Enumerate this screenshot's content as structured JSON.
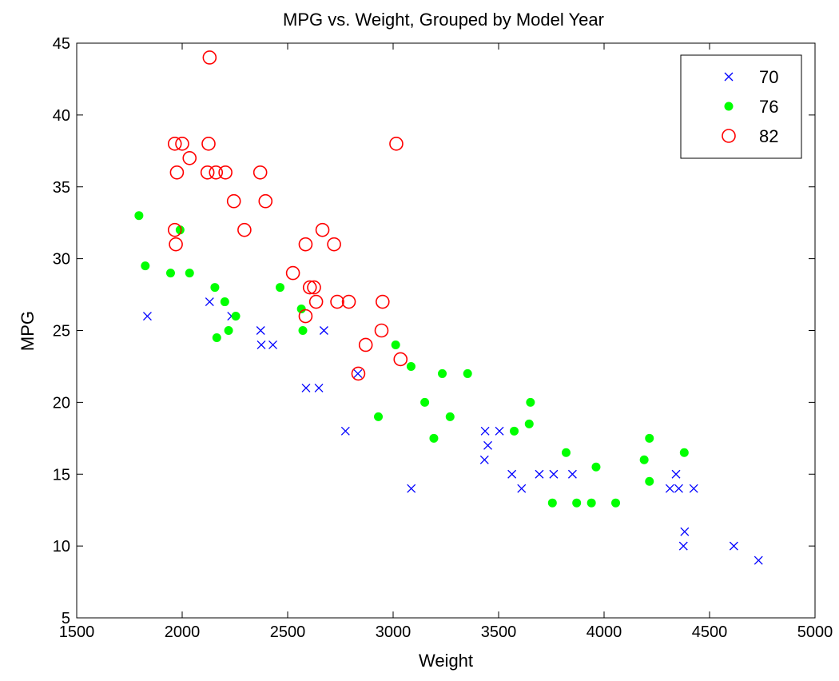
{
  "chart_data": {
    "type": "scatter",
    "title": "MPG vs. Weight, Grouped by Model Year",
    "xlabel": "Weight",
    "ylabel": "MPG",
    "xlim": [
      1500,
      5000
    ],
    "ylim": [
      5,
      45
    ],
    "xticks": [
      1500,
      2000,
      2500,
      3000,
      3500,
      4000,
      4500,
      5000
    ],
    "yticks": [
      5,
      10,
      15,
      20,
      25,
      30,
      35,
      40,
      45
    ],
    "grid": false,
    "legend_position": "top-right",
    "series": [
      {
        "name": "70",
        "marker": "x",
        "color": "#0000ff",
        "points": [
          [
            1835,
            26
          ],
          [
            2130,
            27
          ],
          [
            2234,
            26
          ],
          [
            2372,
            25
          ],
          [
            2375,
            24
          ],
          [
            2430,
            24
          ],
          [
            2587,
            21
          ],
          [
            2648,
            21
          ],
          [
            2672,
            25
          ],
          [
            2774,
            18
          ],
          [
            2833,
            22
          ],
          [
            3086,
            14
          ],
          [
            3433,
            16
          ],
          [
            3436,
            18
          ],
          [
            3449,
            17
          ],
          [
            3504,
            18
          ],
          [
            3563,
            15
          ],
          [
            3609,
            14
          ],
          [
            3693,
            15
          ],
          [
            3761,
            15
          ],
          [
            3850,
            15
          ],
          [
            4312,
            14
          ],
          [
            4341,
            15
          ],
          [
            4354,
            14
          ],
          [
            4376,
            10
          ],
          [
            4382,
            11
          ],
          [
            4425,
            14
          ],
          [
            4615,
            10
          ],
          [
            4732,
            9
          ]
        ]
      },
      {
        "name": "76",
        "marker": "filled-circle",
        "color": "#00ff00",
        "points": [
          [
            1795,
            33
          ],
          [
            1825,
            29.5
          ],
          [
            1945,
            29
          ],
          [
            1990,
            32
          ],
          [
            2035,
            29
          ],
          [
            2155,
            28
          ],
          [
            2164,
            24.5
          ],
          [
            2202,
            27
          ],
          [
            2220,
            25
          ],
          [
            2254,
            26
          ],
          [
            2464,
            28
          ],
          [
            2565,
            26.5
          ],
          [
            2572,
            25
          ],
          [
            3012,
            24
          ],
          [
            3085,
            22.5
          ],
          [
            3150,
            20
          ],
          [
            3193,
            17.5
          ],
          [
            3233,
            22
          ],
          [
            3270,
            19
          ],
          [
            3353,
            22
          ],
          [
            2930,
            19
          ],
          [
            3574,
            18
          ],
          [
            3645,
            18.5
          ],
          [
            3651,
            20
          ],
          [
            3755,
            13
          ],
          [
            3820,
            16.5
          ],
          [
            3870,
            13
          ],
          [
            3940,
            13
          ],
          [
            3962,
            15.5
          ],
          [
            4055,
            13
          ],
          [
            4190,
            16
          ],
          [
            4215,
            14.5
          ],
          [
            4215,
            17.5
          ],
          [
            4380,
            16.5
          ]
        ]
      },
      {
        "name": "82",
        "marker": "open-circle",
        "color": "#ff0000",
        "points": [
          [
            2130,
            44
          ],
          [
            1965,
            38
          ],
          [
            2000,
            38
          ],
          [
            2125,
            38
          ],
          [
            3015,
            38
          ],
          [
            2035,
            37
          ],
          [
            1975,
            36
          ],
          [
            2120,
            36
          ],
          [
            2160,
            36
          ],
          [
            2205,
            36
          ],
          [
            2370,
            36
          ],
          [
            2245,
            34
          ],
          [
            2395,
            34
          ],
          [
            1965,
            32
          ],
          [
            2295,
            32
          ],
          [
            2665,
            32
          ],
          [
            1970,
            31
          ],
          [
            2585,
            31
          ],
          [
            2720,
            31
          ],
          [
            2525,
            29
          ],
          [
            2605,
            28
          ],
          [
            2625,
            28
          ],
          [
            2635,
            27
          ],
          [
            2735,
            27
          ],
          [
            2790,
            27
          ],
          [
            2950,
            27
          ],
          [
            2585,
            26
          ],
          [
            2945,
            25
          ],
          [
            2870,
            24
          ],
          [
            3035,
            23
          ],
          [
            2835,
            22
          ]
        ]
      }
    ]
  }
}
